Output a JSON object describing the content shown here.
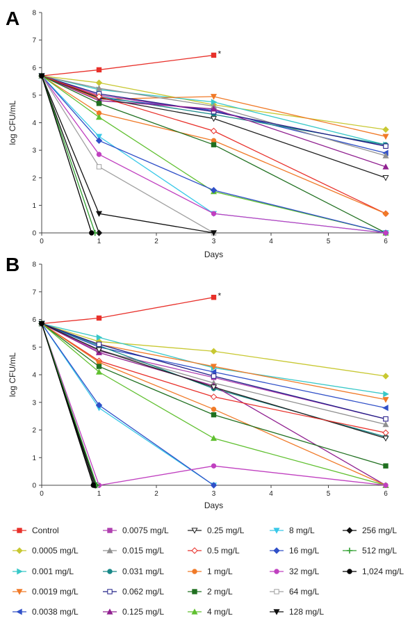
{
  "chart_data": [
    {
      "type": "line",
      "panel": "A",
      "xlabel": "Days",
      "ylabel": "log CFU/mL",
      "xlim": [
        0,
        6
      ],
      "ylim": [
        0,
        8
      ],
      "xticks": [
        0,
        1,
        2,
        3,
        4,
        5,
        6
      ],
      "yticks": [
        0,
        1,
        2,
        3,
        4,
        5,
        6,
        7,
        8
      ],
      "annotation": "*",
      "series": [
        {
          "name": "Control",
          "color": "#e8302a",
          "marker": "square",
          "points": [
            [
              0,
              5.7
            ],
            [
              1,
              5.92
            ],
            [
              3,
              6.45
            ]
          ]
        },
        {
          "name": "0.0005 mg/L",
          "color": "#c8c832",
          "marker": "diamond",
          "points": [
            [
              0,
              5.7
            ],
            [
              1,
              5.45
            ],
            [
              3,
              4.65
            ],
            [
              6,
              3.75
            ]
          ]
        },
        {
          "name": "0.001 mg/L",
          "color": "#38c8c8",
          "marker": "triangle-right",
          "points": [
            [
              0,
              5.7
            ],
            [
              1,
              5.2
            ],
            [
              3,
              4.75
            ],
            [
              6,
              3.2
            ]
          ]
        },
        {
          "name": "0.0019 mg/L",
          "color": "#f07a28",
          "marker": "triangle-down",
          "points": [
            [
              0,
              5.7
            ],
            [
              1,
              4.85
            ],
            [
              3,
              4.95
            ],
            [
              6,
              3.5
            ]
          ]
        },
        {
          "name": "0.0038 mg/L",
          "color": "#3050c8",
          "marker": "triangle-left",
          "points": [
            [
              0,
              5.7
            ],
            [
              1,
              4.9
            ],
            [
              3,
              4.45
            ],
            [
              6,
              2.9
            ]
          ]
        },
        {
          "name": "0.0075 mg/L",
          "color": "#b040b0",
          "marker": "square",
          "points": [
            [
              0,
              5.7
            ],
            [
              1,
              5.0
            ],
            [
              3,
              4.4
            ],
            [
              6,
              3.15
            ]
          ]
        },
        {
          "name": "0.015 mg/L",
          "color": "#909090",
          "marker": "triangle-up",
          "points": [
            [
              0,
              5.7
            ],
            [
              1,
              5.25
            ],
            [
              3,
              4.6
            ],
            [
              6,
              2.8
            ]
          ]
        },
        {
          "name": "0.031 mg/L",
          "color": "#188888",
          "marker": "circle",
          "points": [
            [
              0,
              5.7
            ],
            [
              1,
              4.95
            ],
            [
              3,
              4.3
            ],
            [
              6,
              3.2
            ]
          ]
        },
        {
          "name": "0.062 mg/L",
          "color": "#202088",
          "marker": "square-open",
          "points": [
            [
              0,
              5.7
            ],
            [
              1,
              5.05
            ],
            [
              3,
              4.4
            ],
            [
              6,
              3.15
            ]
          ]
        },
        {
          "name": "0.125 mg/L",
          "color": "#902090",
          "marker": "triangle-up",
          "points": [
            [
              0,
              5.7
            ],
            [
              1,
              4.8
            ],
            [
              3,
              4.5
            ],
            [
              6,
              2.4
            ]
          ]
        },
        {
          "name": "0.25 mg/L",
          "color": "#202020",
          "marker": "triangle-down-open",
          "points": [
            [
              0,
              5.7
            ],
            [
              1,
              4.9
            ],
            [
              3,
              4.15
            ],
            [
              6,
              2.0
            ]
          ]
        },
        {
          "name": "0.5 mg/L",
          "color": "#e8302a",
          "marker": "diamond-open",
          "points": [
            [
              0,
              5.7
            ],
            [
              1,
              4.95
            ],
            [
              3,
              3.7
            ],
            [
              6,
              0.7
            ]
          ]
        },
        {
          "name": "1 mg/L",
          "color": "#f07a28",
          "marker": "circle",
          "points": [
            [
              0,
              5.7
            ],
            [
              1,
              4.35
            ],
            [
              3,
              3.35
            ],
            [
              6,
              0.7
            ]
          ]
        },
        {
          "name": "2 mg/L",
          "color": "#207020",
          "marker": "square",
          "points": [
            [
              0,
              5.7
            ],
            [
              1,
              4.7
            ],
            [
              3,
              3.2
            ],
            [
              6,
              0.0
            ]
          ]
        },
        {
          "name": "4 mg/L",
          "color": "#60c030",
          "marker": "triangle-up",
          "points": [
            [
              0,
              5.7
            ],
            [
              1,
              4.2
            ],
            [
              3,
              1.5
            ],
            [
              6,
              0.0
            ]
          ]
        },
        {
          "name": "8 mg/L",
          "color": "#38c8e8",
          "marker": "triangle-down",
          "points": [
            [
              0,
              5.7
            ],
            [
              1,
              3.5
            ],
            [
              3,
              0.7
            ],
            [
              6,
              0.0
            ]
          ]
        },
        {
          "name": "16 mg/L",
          "color": "#3050c8",
          "marker": "diamond",
          "points": [
            [
              0,
              5.7
            ],
            [
              1,
              3.35
            ],
            [
              3,
              1.55
            ],
            [
              6,
              0.0
            ]
          ]
        },
        {
          "name": "32 mg/L",
          "color": "#c040c0",
          "marker": "circle",
          "points": [
            [
              0,
              5.7
            ],
            [
              1,
              2.85
            ],
            [
              3,
              0.7
            ],
            [
              6,
              0.0
            ]
          ]
        },
        {
          "name": "64 mg/L",
          "color": "#a0a0a0",
          "marker": "square-open",
          "points": [
            [
              0,
              5.7
            ],
            [
              1,
              2.4
            ],
            [
              3,
              0.0
            ]
          ]
        },
        {
          "name": "128 mg/L",
          "color": "#101010",
          "marker": "triangle-down",
          "points": [
            [
              0,
              5.7
            ],
            [
              1,
              0.7
            ],
            [
              3,
              0.0
            ]
          ]
        },
        {
          "name": "256 mg/L",
          "color": "#101010",
          "marker": "diamond",
          "points": [
            [
              0,
              5.7
            ],
            [
              1,
              0.0
            ]
          ]
        },
        {
          "name": "512 mg/L",
          "color": "#30a030",
          "marker": "plus",
          "points": [
            [
              0,
              5.7
            ],
            [
              0.93,
              0.0
            ]
          ]
        },
        {
          "name": "1,024 mg/L",
          "color": "#000000",
          "marker": "circle",
          "points": [
            [
              0,
              5.7
            ],
            [
              0.87,
              0.0
            ]
          ]
        }
      ]
    },
    {
      "type": "line",
      "panel": "B",
      "xlabel": "Days",
      "ylabel": "log CFU/mL",
      "xlim": [
        0,
        6
      ],
      "ylim": [
        0,
        8
      ],
      "xticks": [
        0,
        1,
        2,
        3,
        4,
        5,
        6
      ],
      "yticks": [
        0,
        1,
        2,
        3,
        4,
        5,
        6,
        7,
        8
      ],
      "annotation": "*",
      "series": [
        {
          "name": "Control",
          "color": "#e8302a",
          "marker": "square",
          "points": [
            [
              0,
              5.85
            ],
            [
              1,
              6.05
            ],
            [
              3,
              6.8
            ]
          ]
        },
        {
          "name": "0.0005 mg/L",
          "color": "#c8c832",
          "marker": "diamond",
          "points": [
            [
              0,
              5.85
            ],
            [
              1,
              5.2
            ],
            [
              3,
              4.85
            ],
            [
              6,
              3.95
            ]
          ]
        },
        {
          "name": "0.001 mg/L",
          "color": "#38c8c8",
          "marker": "triangle-right",
          "points": [
            [
              0,
              5.85
            ],
            [
              1,
              5.35
            ],
            [
              3,
              4.25
            ],
            [
              6,
              3.3
            ]
          ]
        },
        {
          "name": "0.0019 mg/L",
          "color": "#f07a28",
          "marker": "triangle-down",
          "points": [
            [
              0,
              5.85
            ],
            [
              1,
              5.1
            ],
            [
              3,
              4.3
            ],
            [
              6,
              3.1
            ]
          ]
        },
        {
          "name": "0.0038 mg/L",
          "color": "#3050c8",
          "marker": "triangle-left",
          "points": [
            [
              0,
              5.85
            ],
            [
              1,
              5.0
            ],
            [
              3,
              4.1
            ],
            [
              6,
              2.8
            ]
          ]
        },
        {
          "name": "0.0075 mg/L",
          "color": "#b040b0",
          "marker": "square",
          "points": [
            [
              0,
              5.85
            ],
            [
              1,
              4.85
            ],
            [
              3,
              3.9
            ],
            [
              6,
              2.4
            ]
          ]
        },
        {
          "name": "0.015 mg/L",
          "color": "#909090",
          "marker": "triangle-up",
          "points": [
            [
              0,
              5.85
            ],
            [
              1,
              4.9
            ],
            [
              3,
              3.7
            ],
            [
              6,
              2.2
            ]
          ]
        },
        {
          "name": "0.031 mg/L",
          "color": "#188888",
          "marker": "circle",
          "points": [
            [
              0,
              5.85
            ],
            [
              1,
              5.05
            ],
            [
              3,
              3.5
            ],
            [
              6,
              1.75
            ]
          ]
        },
        {
          "name": "0.062 mg/L",
          "color": "#202088",
          "marker": "square-open",
          "points": [
            [
              0,
              5.85
            ],
            [
              1,
              5.1
            ],
            [
              3,
              3.95
            ],
            [
              6,
              2.4
            ]
          ]
        },
        {
          "name": "0.125 mg/L",
          "color": "#902090",
          "marker": "triangle-up",
          "points": [
            [
              0,
              5.85
            ],
            [
              1,
              4.8
            ],
            [
              3,
              3.6
            ],
            [
              6,
              0.0
            ]
          ]
        },
        {
          "name": "0.25 mg/L",
          "color": "#202020",
          "marker": "triangle-down-open",
          "points": [
            [
              0,
              5.85
            ],
            [
              1,
              4.9
            ],
            [
              3,
              3.55
            ],
            [
              6,
              1.7
            ]
          ]
        },
        {
          "name": "0.5 mg/L",
          "color": "#e8302a",
          "marker": "diamond-open",
          "points": [
            [
              0,
              5.85
            ],
            [
              1,
              4.5
            ],
            [
              3,
              3.2
            ],
            [
              6,
              1.9
            ]
          ]
        },
        {
          "name": "1 mg/L",
          "color": "#f07a28",
          "marker": "circle",
          "points": [
            [
              0,
              5.85
            ],
            [
              1,
              4.45
            ],
            [
              3,
              2.75
            ],
            [
              6,
              0.0
            ]
          ]
        },
        {
          "name": "2 mg/L",
          "color": "#207020",
          "marker": "square",
          "points": [
            [
              0,
              5.85
            ],
            [
              1,
              4.3
            ],
            [
              3,
              2.55
            ],
            [
              6,
              0.7
            ]
          ]
        },
        {
          "name": "4 mg/L",
          "color": "#60c030",
          "marker": "triangle-up",
          "points": [
            [
              0,
              5.85
            ],
            [
              1,
              4.1
            ],
            [
              3,
              1.7
            ],
            [
              6,
              0.0
            ]
          ]
        },
        {
          "name": "8 mg/L",
          "color": "#38c8e8",
          "marker": "triangle-down",
          "points": [
            [
              0,
              5.85
            ],
            [
              1,
              2.8
            ],
            [
              3,
              0.0
            ]
          ]
        },
        {
          "name": "16 mg/L",
          "color": "#3050c8",
          "marker": "diamond",
          "points": [
            [
              0,
              5.85
            ],
            [
              1,
              2.9
            ],
            [
              3,
              0.0
            ]
          ]
        },
        {
          "name": "32 mg/L",
          "color": "#c040c0",
          "marker": "circle",
          "points": [
            [
              0,
              5.85
            ],
            [
              1,
              0.0
            ],
            [
              3,
              0.7
            ],
            [
              6,
              0.0
            ]
          ]
        },
        {
          "name": "64 mg/L",
          "color": "#a0a0a0",
          "marker": "square-open",
          "points": [
            [
              0,
              5.85
            ],
            [
              0.95,
              0.0
            ]
          ]
        },
        {
          "name": "128 mg/L",
          "color": "#101010",
          "marker": "triangle-down",
          "points": [
            [
              0,
              5.85
            ],
            [
              0.92,
              0.0
            ]
          ]
        },
        {
          "name": "256 mg/L",
          "color": "#101010",
          "marker": "diamond",
          "points": [
            [
              0,
              5.85
            ],
            [
              0.94,
              0.0
            ]
          ]
        },
        {
          "name": "512 mg/L",
          "color": "#30a030",
          "marker": "plus",
          "points": [
            [
              0,
              5.85
            ],
            [
              0.96,
              0.0
            ]
          ]
        },
        {
          "name": "1,024 mg/L",
          "color": "#000000",
          "marker": "circle",
          "points": [
            [
              0,
              5.85
            ],
            [
              0.9,
              0.0
            ]
          ]
        }
      ]
    }
  ],
  "legend": {
    "columns": [
      [
        "Control",
        "0.0005 mg/L",
        "0.001 mg/L",
        "0.0019 mg/L",
        "0.0038 mg/L"
      ],
      [
        "0.0075 mg/L",
        "0.015 mg/L",
        "0.031 mg/L",
        "0.062 mg/L",
        "0.125 mg/L"
      ],
      [
        "0.25 mg/L",
        "0.5 mg/L",
        "1 mg/L",
        "2 mg/L",
        "4 mg/L"
      ],
      [
        "8 mg/L",
        "16 mg/L",
        "32 mg/L",
        "64 mg/L",
        "128 mg/L"
      ],
      [
        "256 mg/L",
        "512 mg/L",
        "1,024 mg/L"
      ]
    ]
  }
}
